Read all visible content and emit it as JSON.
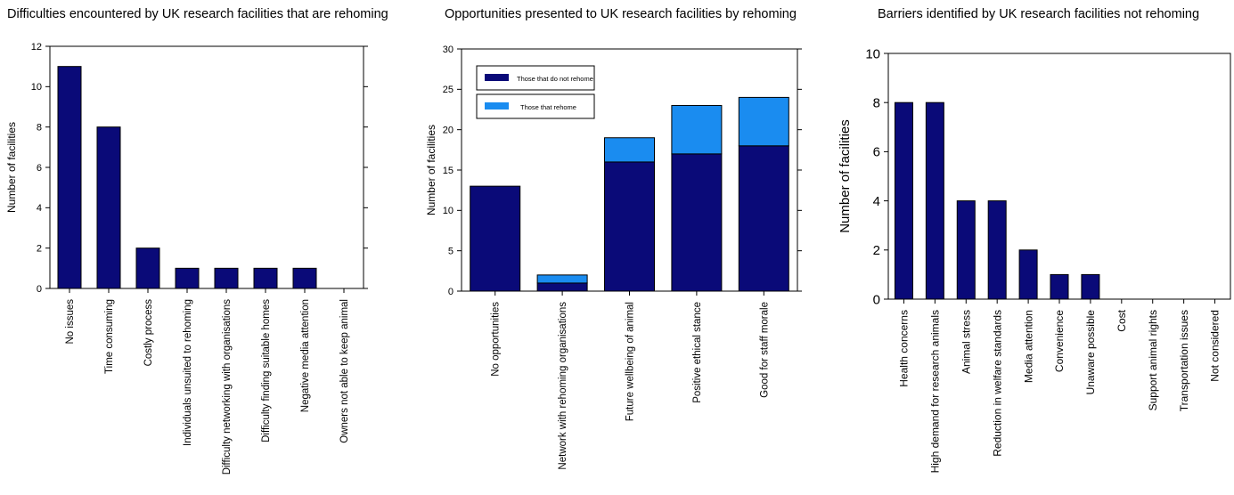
{
  "colors": {
    "dark": "#0a0a78",
    "light": "#1a8cf0",
    "axis": "#000000"
  },
  "chart_data": [
    {
      "type": "bar",
      "title": "Difficulties encountered by UK research facilities that are rehoming",
      "ylabel": "Number of facilities",
      "xlabel": "",
      "ylim": [
        0,
        12
      ],
      "yticks": [
        0,
        2,
        4,
        6,
        8,
        10,
        12
      ],
      "grid": false,
      "categories": [
        "No issues",
        "Time consuming",
        "Costly process",
        "Individuals unsuited to rehoming",
        "Difficulty networking with organisations",
        "Difficulty finding suitable homes",
        "Negative media attention",
        "Owners not able to keep animal"
      ],
      "values": [
        11,
        8,
        2,
        1,
        1,
        1,
        1,
        0
      ]
    },
    {
      "type": "bar",
      "stacked": true,
      "title": "Opportunities presented to UK research facilities by rehoming",
      "ylabel": "Number of facilities",
      "xlabel": "",
      "ylim": [
        0,
        30
      ],
      "yticks": [
        0,
        5,
        10,
        15,
        20,
        25,
        30
      ],
      "grid": false,
      "legend_position": "top-left",
      "categories": [
        "No opportunities",
        "Network with rehoming organisations",
        "Future wellbeing of animal",
        "Positive ethical stance",
        "Good for staff morale"
      ],
      "series": [
        {
          "name": "Those that do not rehome",
          "values": [
            13,
            1,
            16,
            17,
            18
          ]
        },
        {
          "name": "Those that rehome",
          "values": [
            0,
            1,
            3,
            6,
            6
          ]
        }
      ]
    },
    {
      "type": "bar",
      "title": "Barriers identified by UK research facilities not rehoming",
      "ylabel": "Number of facilities",
      "xlabel": "",
      "ylim": [
        0,
        10
      ],
      "yticks": [
        0,
        2,
        4,
        6,
        8,
        10
      ],
      "grid": false,
      "categories": [
        "Health concerns",
        "High demand for research animals",
        "Animal stress",
        "Reduction in welfare standards",
        "Media attention",
        "Convenience",
        "Unaware possible",
        "Cost",
        "Support animal rights",
        "Transportation issues",
        "Not considered"
      ],
      "values": [
        8,
        8,
        4,
        4,
        2,
        1,
        1,
        0,
        0,
        0,
        0
      ]
    }
  ]
}
